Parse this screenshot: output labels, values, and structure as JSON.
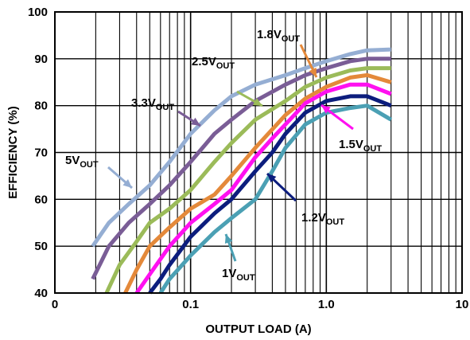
{
  "chart_data": {
    "type": "line",
    "xlabel": "OUTPUT LOAD (A)",
    "ylabel": "EFFICIENCY (%)",
    "xscale": "log",
    "xlim": [
      0.01,
      10
    ],
    "ylim": [
      40,
      100
    ],
    "grid": true,
    "x_tick_labels": [
      "0",
      "0.1",
      "1.0",
      "10"
    ],
    "x_tick_values": [
      0.01,
      0.1,
      1,
      10
    ],
    "y_ticks": [
      40,
      50,
      60,
      70,
      80,
      90,
      100
    ],
    "series": [
      {
        "name": "5V",
        "subscript": "OUT",
        "color": "#95aed3",
        "x": [
          0.019,
          0.025,
          0.035,
          0.05,
          0.07,
          0.1,
          0.15,
          0.2,
          0.3,
          0.5,
          0.7,
          1.0,
          1.5,
          2.0,
          3.0
        ],
        "y": [
          50,
          55,
          59,
          63,
          68,
          74,
          79,
          82,
          84.5,
          86.5,
          88,
          89.5,
          91,
          91.8,
          92
        ]
      },
      {
        "name": "3.3V",
        "subscript": "OUT",
        "color": "#7a5d96",
        "x": [
          0.019,
          0.025,
          0.035,
          0.05,
          0.07,
          0.1,
          0.15,
          0.2,
          0.3,
          0.5,
          0.7,
          1.0,
          1.5,
          2.0,
          3.0
        ],
        "y": [
          43,
          50,
          55,
          59,
          63,
          68,
          74,
          77,
          81,
          84.5,
          86.5,
          88,
          89.5,
          90,
          90
        ]
      },
      {
        "name": "2.5V",
        "subscript": "OUT",
        "color": "#9bbb59",
        "x": [
          0.024,
          0.03,
          0.04,
          0.05,
          0.07,
          0.1,
          0.15,
          0.2,
          0.3,
          0.5,
          0.7,
          1.0,
          1.5,
          2.0,
          3.0
        ],
        "y": [
          40,
          46,
          51,
          55,
          58,
          62,
          68,
          72,
          77,
          81,
          84,
          86,
          87.5,
          88,
          88
        ]
      },
      {
        "name": "1.8V",
        "subscript": "OUT",
        "color": "#e4893a",
        "x": [
          0.033,
          0.04,
          0.05,
          0.07,
          0.1,
          0.15,
          0.2,
          0.3,
          0.5,
          0.7,
          1.0,
          1.5,
          2.0,
          3.0
        ],
        "y": [
          40,
          45,
          50,
          54,
          58,
          61,
          65,
          71,
          78,
          81.5,
          84,
          86,
          86.5,
          85
        ]
      },
      {
        "name": "1.5V",
        "subscript": "OUT",
        "color": "#ff10f0",
        "x": [
          0.04,
          0.05,
          0.07,
          0.1,
          0.15,
          0.2,
          0.3,
          0.4,
          0.5,
          0.7,
          1.0,
          1.5,
          2.0,
          3.0
        ],
        "y": [
          40,
          44,
          50,
          55,
          59,
          62,
          69,
          73,
          76,
          80.5,
          83,
          84.5,
          84.5,
          82.5
        ]
      },
      {
        "name": "1.2V",
        "subscript": "OUT",
        "color": "#0c1d7d",
        "x": [
          0.05,
          0.06,
          0.07,
          0.1,
          0.15,
          0.2,
          0.3,
          0.4,
          0.5,
          0.7,
          1.0,
          1.5,
          2.0,
          3.0
        ],
        "y": [
          40,
          43,
          46,
          52,
          57,
          60,
          66,
          70,
          74,
          78.5,
          81,
          82,
          82,
          80
        ]
      },
      {
        "name": "1V",
        "subscript": "OUT",
        "color": "#4ba0b4",
        "x": [
          0.06,
          0.07,
          0.1,
          0.15,
          0.2,
          0.3,
          0.4,
          0.5,
          0.7,
          1.0,
          1.5,
          2.0,
          3.0
        ],
        "y": [
          40,
          43,
          48,
          53,
          56,
          60,
          66,
          71,
          76,
          78.5,
          79.5,
          80,
          77
        ]
      }
    ]
  }
}
